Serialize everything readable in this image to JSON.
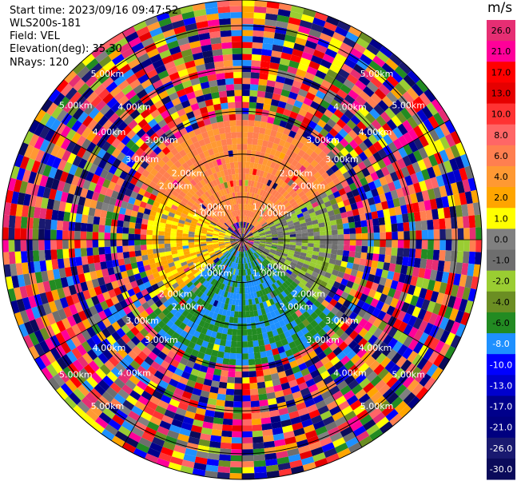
{
  "header": {
    "start_time": "Start time: 2023/09/16 09:47:52",
    "device": "WLS200s-181",
    "field": "Field: VEL",
    "elevation": "Elevation(deg): 35.30",
    "nrays": "NRays: 120"
  },
  "chart_data": {
    "type": "heatmap",
    "projection": "polar-ppi",
    "field": "VEL",
    "units": "m/s",
    "nrays": 120,
    "range_rings_km": [
      1.0,
      2.0,
      3.0,
      4.0,
      5.0
    ],
    "ring_labels": [
      "1.00km",
      "2.00km",
      "3.00km",
      "4.00km",
      "5.00km"
    ],
    "max_range_km": 5.6,
    "colorbar": {
      "label": "m/s",
      "tick_labels": [
        "26.0",
        "21.0",
        "17.0",
        "13.0",
        "10.0",
        "8.0",
        "6.0",
        "4.0",
        "2.0",
        "1.0",
        "0.0",
        "-1.0",
        "-2.0",
        "-4.0",
        "-6.0",
        "-8.0",
        "-10.0",
        "-13.0",
        "-17.0",
        "-21.0",
        "-26.0",
        "-30.0"
      ],
      "colors": [
        "#e62e73",
        "#ff0099",
        "#ff0000",
        "#e60000",
        "#ff3333",
        "#ff6666",
        "#ff7f50",
        "#ff9933",
        "#ffa500",
        "#ffff00",
        "#808080",
        "#6e6e6e",
        "#9acd32",
        "#6b8e23",
        "#228b22",
        "#1e90ff",
        "#0000ff",
        "#0000cd",
        "#00008b",
        "#000080",
        "#191970",
        "#0a0a5a"
      ]
    },
    "velocity_regions": [
      {
        "sector": "north",
        "range_km": [
          0.4,
          2.8
        ],
        "value_ms": 6.0
      },
      {
        "sector": "west",
        "range_km": [
          0.3,
          2.2
        ],
        "value_ms": 2.0
      },
      {
        "sector": "east",
        "range_km": [
          0.3,
          2.4
        ],
        "value_ms": -1.0
      },
      {
        "sector": "south",
        "range_km": [
          0.3,
          3.0
        ],
        "value_ms": -6.0
      }
    ]
  }
}
